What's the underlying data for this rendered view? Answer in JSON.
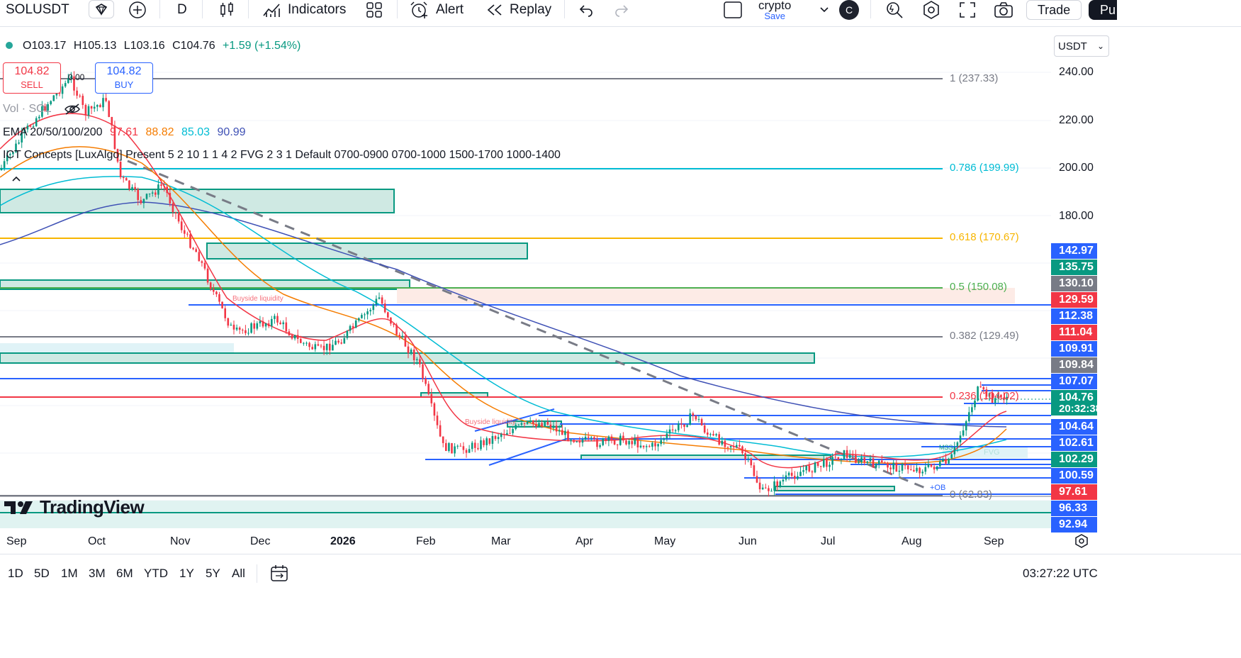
{
  "toolbar": {
    "symbol": "SOLUSDT",
    "interval": "D",
    "indicators_label": "Indicators",
    "alert_label": "Alert",
    "replay_label": "Replay",
    "layout_name": "crypto",
    "save_label": "Save",
    "avatar_initial": "C",
    "trade_label": "Trade",
    "publish_label": "Pu"
  },
  "legend": {
    "ohlc_open": "O103.17",
    "ohlc_high": "H105.13",
    "ohlc_low": "L103.16",
    "ohlc_close": "C104.76",
    "ohlc_change": "+1.59 (+1.54%)",
    "sell_price": "104.82",
    "sell_label": "SELL",
    "buy_price": "104.82",
    "buy_label": "BUY",
    "spread": "0.00",
    "volume": "Vol · SOL",
    "ema_title": "EMA 20/50/100/200",
    "ema20": "97.61",
    "ema50": "88.82",
    "ema100": "85.03",
    "ema200": "90.99",
    "ict": "ICT Concepts [LuxAlgo] Present 5 2 10 1 1 4 2 FVG 2 3 1 Default 0700-0900 0700-1000 1500-1700 1000-1400"
  },
  "price_scale": {
    "currency": "USDT",
    "ticks": [
      "240.00",
      "220.00",
      "200.00",
      "180.00"
    ],
    "labels": [
      {
        "text": "142.97",
        "color": "#2962ff"
      },
      {
        "text": "135.75",
        "color": "#089981"
      },
      {
        "text": "130.10",
        "color": "#787b86"
      },
      {
        "text": "129.59",
        "color": "#f23645"
      },
      {
        "text": "112.38",
        "color": "#2962ff"
      },
      {
        "text": "111.04",
        "color": "#f23645"
      },
      {
        "text": "109.91",
        "color": "#2962ff"
      },
      {
        "text": "109.84",
        "color": "#787b86"
      },
      {
        "text": "107.07",
        "color": "#2962ff"
      },
      {
        "text": "104.76",
        "color": "#089981"
      },
      {
        "text": "20:32:38",
        "color": "#089981"
      },
      {
        "text": "104.64",
        "color": "#2962ff"
      },
      {
        "text": "102.61",
        "color": "#2962ff"
      },
      {
        "text": "102.29",
        "color": "#089981"
      },
      {
        "text": "100.59",
        "color": "#2962ff"
      },
      {
        "text": "97.61",
        "color": "#f23645"
      },
      {
        "text": "96.33",
        "color": "#2962ff"
      },
      {
        "text": "92.94",
        "color": "#2962ff"
      }
    ]
  },
  "fib_levels": [
    {
      "text": "1 (237.33)",
      "color": "#787b86"
    },
    {
      "text": "0.786 (199.99)",
      "color": "#00bcd4"
    },
    {
      "text": "0.618 (170.67)",
      "color": "#f7b500"
    },
    {
      "text": "0.5 (150.08)",
      "color": "#4caf50"
    },
    {
      "text": "0.382 (129.49)",
      "color": "#787b86"
    },
    {
      "text": "0.236 (104.02)",
      "color": "#f23645"
    },
    {
      "text": "0 (62.83)",
      "color": "#787b86"
    }
  ],
  "annotations": {
    "buyside_1": "Buyside liquidity",
    "buyside_2": "Buyside liquidity",
    "mss": "MSS",
    "fvg": "FVG",
    "ob": "+OB"
  },
  "time_axis": [
    "Sep",
    "Oct",
    "Nov",
    "Dec",
    "2026",
    "Feb",
    "Mar",
    "Apr",
    "May",
    "Jun",
    "Jul",
    "Aug",
    "Sep"
  ],
  "bottom_bar": {
    "ranges": [
      "1D",
      "5D",
      "1M",
      "3M",
      "6M",
      "YTD",
      "1Y",
      "5Y",
      "All"
    ],
    "clock": "03:27:22 UTC"
  },
  "watermark": "TradingView",
  "colors": {
    "up": "#089981",
    "down": "#f23645",
    "ema20": "#f23645",
    "ema50": "#f57c00",
    "ema100": "#00bcd4",
    "ema200": "#3f51b5",
    "blue_lines": "#2962ff"
  }
}
